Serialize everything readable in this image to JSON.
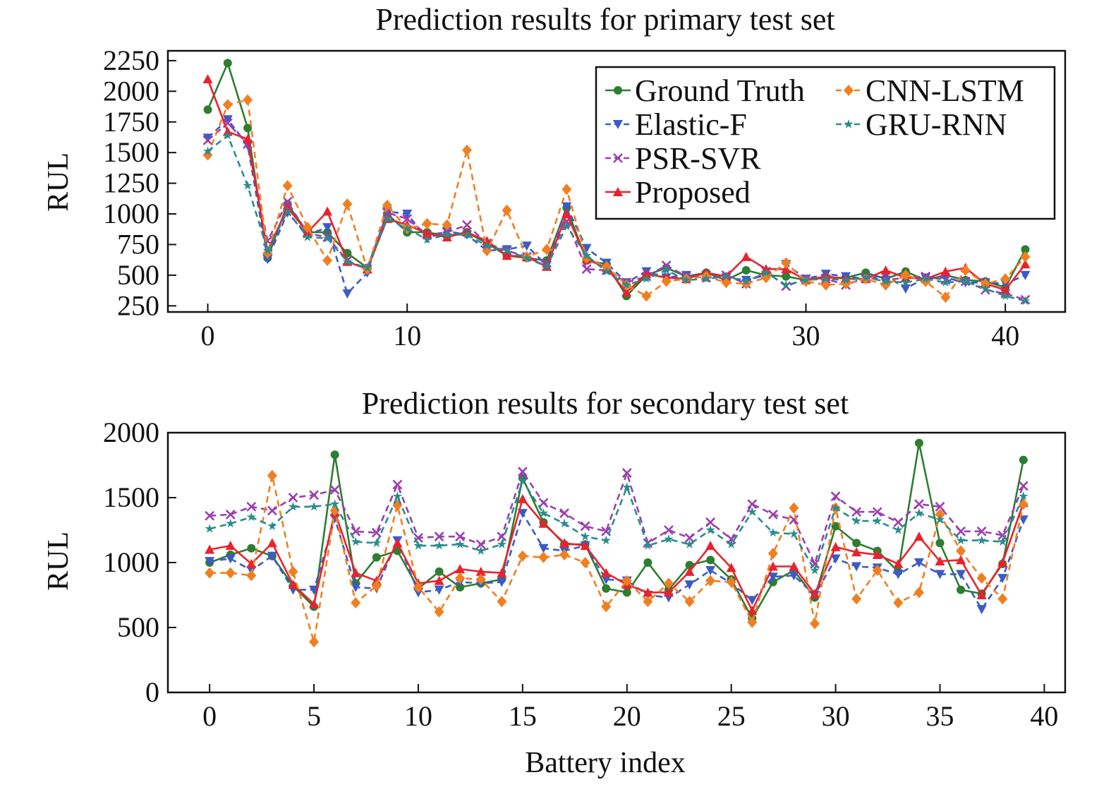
{
  "chart_data": [
    {
      "type": "line",
      "title": "Prediction results for primary test set",
      "xlabel": "",
      "ylabel": "RUL",
      "xlim": [
        -2,
        43
      ],
      "ylim": [
        200,
        2330
      ],
      "xticks": [
        0,
        10,
        30,
        40
      ],
      "yticks": [
        250,
        500,
        750,
        1000,
        1250,
        1500,
        1750,
        2000,
        2250
      ],
      "legend_position": "top-right",
      "grid": false,
      "x": [
        0,
        1,
        2,
        3,
        4,
        5,
        6,
        7,
        8,
        9,
        10,
        11,
        12,
        13,
        14,
        15,
        16,
        17,
        18,
        19,
        20,
        21,
        22,
        23,
        24,
        25,
        26,
        27,
        28,
        29,
        30,
        31,
        32,
        33,
        34,
        35,
        36,
        37,
        38,
        39,
        40,
        41
      ],
      "series": [
        {
          "name": "Ground Truth",
          "color": "#2e7d32",
          "dash": "solid",
          "marker": "circle",
          "values": [
            1850,
            2230,
            1700,
            640,
            1080,
            850,
            850,
            680,
            560,
            1000,
            850,
            850,
            820,
            850,
            760,
            660,
            640,
            620,
            1050,
            620,
            590,
            330,
            500,
            560,
            490,
            520,
            460,
            540,
            500,
            490,
            460,
            480,
            480,
            520,
            470,
            530,
            460,
            500,
            460,
            450,
            400,
            710
          ]
        },
        {
          "name": "Elastic-F",
          "color": "#3b5bc6",
          "dash": "dashed",
          "marker": "triangle-down",
          "values": [
            1620,
            1770,
            1560,
            630,
            1010,
            830,
            890,
            350,
            520,
            1020,
            1000,
            800,
            860,
            830,
            700,
            710,
            740,
            580,
            1060,
            720,
            600,
            440,
            530,
            480,
            500,
            500,
            480,
            460,
            500,
            590,
            470,
            510,
            490,
            470,
            500,
            390,
            480,
            480,
            440,
            440,
            430,
            500
          ]
        },
        {
          "name": "PSR-SVR",
          "color": "#9b3fb0",
          "dash": "dashed",
          "marker": "x",
          "values": [
            1600,
            1740,
            1570,
            780,
            1100,
            840,
            810,
            620,
            550,
            1010,
            960,
            830,
            850,
            910,
            760,
            700,
            650,
            600,
            940,
            550,
            540,
            440,
            490,
            580,
            490,
            480,
            500,
            430,
            530,
            410,
            470,
            470,
            420,
            480,
            460,
            480,
            490,
            460,
            450,
            380,
            350,
            300
          ]
        },
        {
          "name": "Proposed",
          "color": "#e8232d",
          "dash": "solid",
          "marker": "triangle-up",
          "values": [
            2100,
            1670,
            1610,
            700,
            1050,
            850,
            1020,
            610,
            550,
            960,
            910,
            840,
            810,
            850,
            780,
            660,
            650,
            570,
            1000,
            630,
            560,
            360,
            510,
            480,
            470,
            520,
            490,
            650,
            550,
            550,
            460,
            490,
            470,
            470,
            540,
            480,
            470,
            530,
            560,
            430,
            380,
            590
          ]
        },
        {
          "name": "CNN-LSTM",
          "color": "#f07f22",
          "dash": "dashed",
          "marker": "diamond",
          "values": [
            1480,
            1890,
            1930,
            680,
            1230,
            890,
            620,
            1080,
            550,
            1070,
            880,
            920,
            910,
            1520,
            700,
            1030,
            650,
            710,
            1200,
            640,
            570,
            420,
            330,
            450,
            470,
            490,
            440,
            430,
            480,
            600,
            450,
            420,
            430,
            470,
            420,
            500,
            450,
            320,
            540,
            430,
            470,
            650
          ]
        },
        {
          "name": "GRU-RNN",
          "color": "#2a8c8c",
          "dash": "dashed",
          "marker": "star",
          "values": [
            1510,
            1640,
            1230,
            700,
            1020,
            810,
            800,
            610,
            560,
            960,
            880,
            790,
            830,
            830,
            740,
            700,
            640,
            570,
            900,
            660,
            530,
            420,
            470,
            540,
            460,
            470,
            490,
            450,
            520,
            420,
            460,
            470,
            460,
            480,
            450,
            440,
            470,
            440,
            450,
            390,
            330,
            290
          ]
        }
      ]
    },
    {
      "type": "line",
      "title": "Prediction results for secondary test set",
      "xlabel": "Battery index",
      "ylabel": "RUL",
      "xlim": [
        -2,
        41
      ],
      "ylim": [
        0,
        2000
      ],
      "xticks": [
        0,
        5,
        10,
        15,
        20,
        25,
        30,
        35,
        40
      ],
      "yticks": [
        0,
        500,
        1000,
        1500,
        2000
      ],
      "grid": false,
      "x": [
        0,
        1,
        2,
        3,
        4,
        5,
        6,
        7,
        8,
        9,
        10,
        11,
        12,
        13,
        14,
        15,
        16,
        17,
        18,
        19,
        20,
        21,
        22,
        23,
        24,
        25,
        26,
        27,
        28,
        29,
        30,
        31,
        32,
        33,
        34,
        35,
        36,
        37,
        38,
        39
      ],
      "series": [
        {
          "name": "Ground Truth",
          "color": "#2e7d32",
          "dash": "solid",
          "marker": "circle",
          "values": [
            1000,
            1060,
            1110,
            1050,
            820,
            660,
            1830,
            840,
            1040,
            1090,
            800,
            930,
            810,
            840,
            870,
            1650,
            1310,
            1140,
            1140,
            800,
            770,
            1000,
            790,
            980,
            1020,
            870,
            570,
            850,
            940,
            730,
            1280,
            1150,
            1090,
            930,
            1920,
            1150,
            790,
            760,
            990,
            1790
          ]
        },
        {
          "name": "Elastic-F",
          "color": "#3b5bc6",
          "dash": "dashed",
          "marker": "triangle-down",
          "values": [
            1010,
            1030,
            940,
            1050,
            790,
            790,
            1340,
            810,
            800,
            1170,
            770,
            790,
            850,
            840,
            850,
            1380,
            1110,
            1090,
            1130,
            870,
            860,
            750,
            730,
            830,
            940,
            840,
            710,
            890,
            900,
            750,
            1030,
            970,
            960,
            910,
            1000,
            910,
            910,
            640,
            880,
            1330
          ]
        },
        {
          "name": "PSR-SVR",
          "color": "#9b3fb0",
          "dash": "dashed",
          "marker": "x",
          "values": [
            1360,
            1370,
            1430,
            1400,
            1500,
            1520,
            1560,
            1240,
            1230,
            1600,
            1190,
            1200,
            1200,
            1140,
            1200,
            1700,
            1460,
            1380,
            1280,
            1240,
            1690,
            1150,
            1250,
            1190,
            1310,
            1180,
            1450,
            1370,
            1330,
            990,
            1510,
            1390,
            1390,
            1310,
            1450,
            1430,
            1240,
            1240,
            1210,
            1590
          ]
        },
        {
          "name": "Proposed",
          "color": "#e8232d",
          "dash": "solid",
          "marker": "triangle-up",
          "values": [
            1100,
            1130,
            990,
            1150,
            830,
            680,
            1390,
            920,
            860,
            1150,
            840,
            860,
            950,
            930,
            920,
            1490,
            1300,
            1150,
            1130,
            920,
            830,
            770,
            770,
            930,
            1130,
            960,
            630,
            970,
            970,
            760,
            1120,
            1080,
            1060,
            990,
            1200,
            1010,
            1020,
            750,
            1000,
            1460
          ]
        },
        {
          "name": "CNN-LSTM",
          "color": "#f07f22",
          "dash": "dashed",
          "marker": "diamond",
          "values": [
            920,
            920,
            900,
            1670,
            930,
            390,
            1400,
            690,
            820,
            1440,
            810,
            620,
            880,
            870,
            700,
            1050,
            1040,
            1060,
            1000,
            660,
            860,
            700,
            840,
            700,
            860,
            850,
            540,
            1070,
            1420,
            530,
            1420,
            720,
            940,
            690,
            770,
            1370,
            1090,
            880,
            720,
            1450
          ]
        },
        {
          "name": "GRU-RNN",
          "color": "#2a8c8c",
          "dash": "dashed",
          "marker": "star",
          "values": [
            1260,
            1300,
            1350,
            1280,
            1430,
            1430,
            1450,
            1160,
            1150,
            1510,
            1130,
            1130,
            1140,
            1090,
            1140,
            1630,
            1380,
            1300,
            1200,
            1170,
            1580,
            1130,
            1180,
            1140,
            1250,
            1140,
            1390,
            1230,
            1220,
            940,
            1420,
            1320,
            1320,
            1250,
            1380,
            1330,
            1170,
            1170,
            1160,
            1510
          ]
        }
      ]
    }
  ]
}
